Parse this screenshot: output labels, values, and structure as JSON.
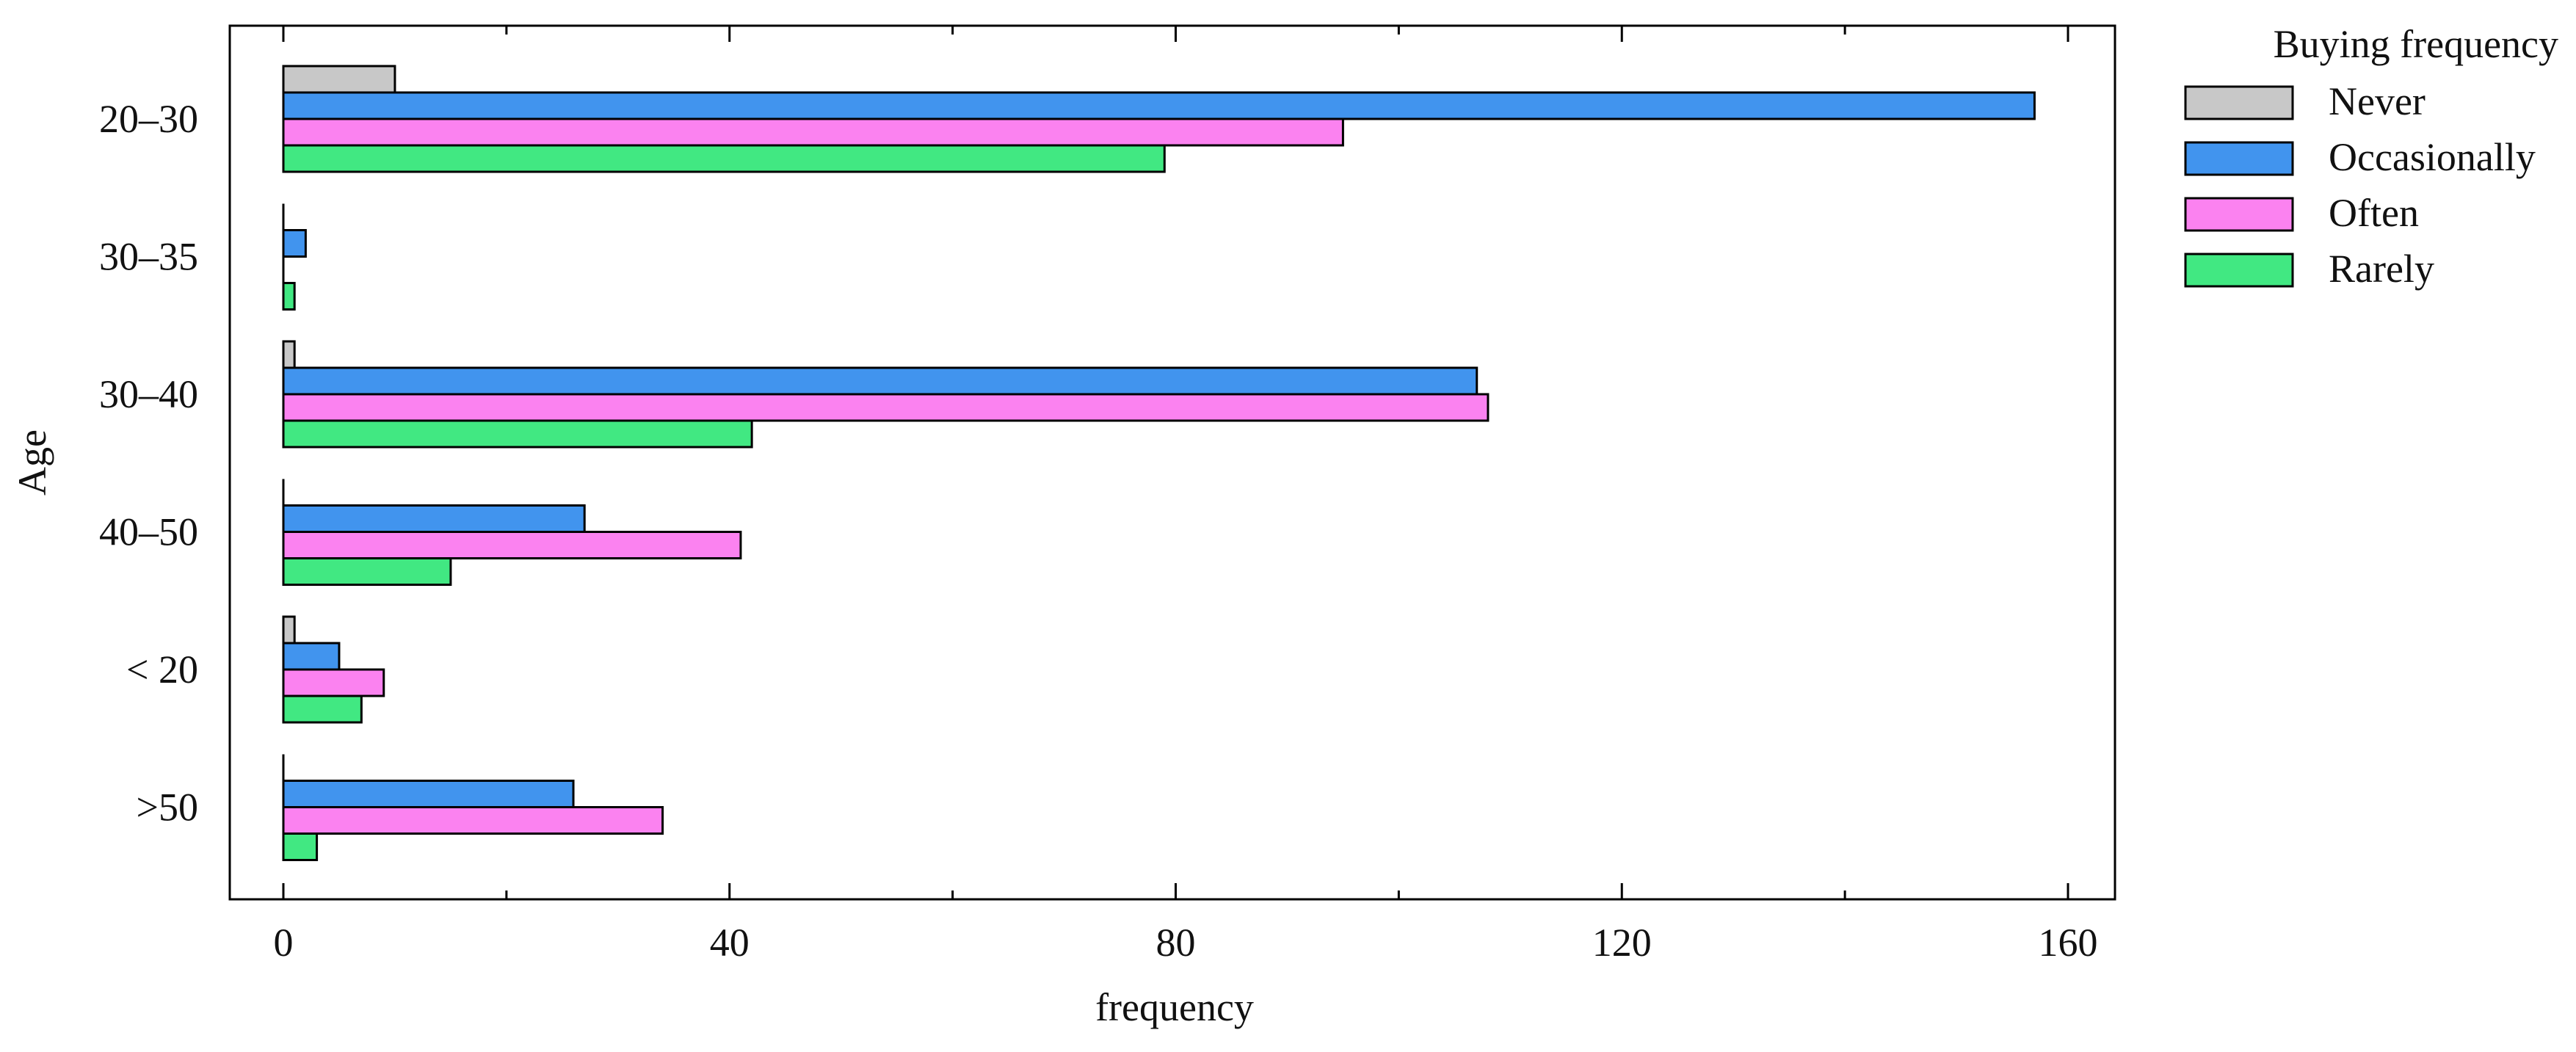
{
  "chart_data": {
    "type": "bar",
    "orientation": "horizontal",
    "categories": [
      "20–30",
      "30–35",
      "30–40",
      "40–50",
      "< 20",
      ">50"
    ],
    "series": [
      {
        "name": "Never",
        "color": "#c8c8c8",
        "values": [
          10,
          0,
          1,
          0,
          1,
          0
        ]
      },
      {
        "name": "Occasionally",
        "color": "#4194ee",
        "values": [
          157,
          2,
          107,
          27,
          5,
          26
        ]
      },
      {
        "name": "Often",
        "color": "#fb82f0",
        "values": [
          95,
          0,
          108,
          41,
          9,
          34
        ]
      },
      {
        "name": "Rarely",
        "color": "#41e882",
        "values": [
          79,
          1,
          42,
          15,
          7,
          3
        ]
      }
    ],
    "xlabel": "frequency",
    "ylabel": "Age",
    "xlim": [
      -5,
      165
    ],
    "xticks": [
      0,
      40,
      80,
      120,
      160
    ],
    "xticks_minor": [
      20,
      60,
      100,
      140
    ],
    "grid": false,
    "legend": {
      "title": "Buying frequency",
      "placement": "outside-right"
    }
  }
}
